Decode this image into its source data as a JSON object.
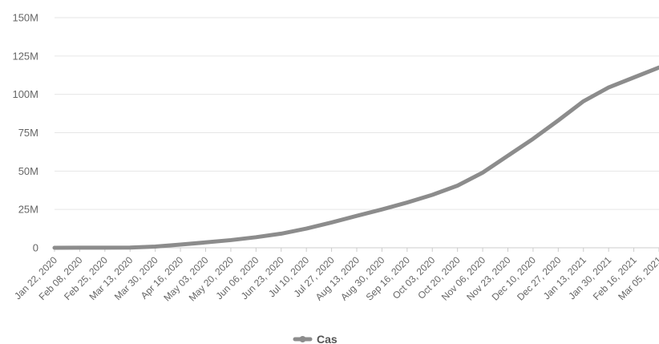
{
  "chart_data": {
    "type": "line",
    "series": [
      {
        "name": "Cas",
        "color": "#8c8c8c",
        "x": [
          "Jan 22, 2020",
          "Feb 08, 2020",
          "Feb 25, 2020",
          "Mar 13, 2020",
          "Mar 30, 2020",
          "Apr 16, 2020",
          "May 03, 2020",
          "May 20, 2020",
          "Jun 06, 2020",
          "Jun 23, 2020",
          "Jul 10, 2020",
          "Jul 27, 2020",
          "Aug 13, 2020",
          "Aug 30, 2020",
          "Sep 16, 2020",
          "Oct 03, 2020",
          "Oct 20, 2020",
          "Nov 06, 2020",
          "Nov 23, 2020",
          "Dec 10, 2020",
          "Dec 27, 2020",
          "Jan 13, 2021",
          "Jan 30, 2021",
          "Feb 16, 2021",
          "Mar 05, 2021"
        ],
        "values": [
          0.0006,
          0.04,
          0.08,
          0.15,
          0.8,
          2.1,
          3.5,
          5.0,
          6.9,
          9.2,
          12.5,
          16.5,
          20.8,
          25.0,
          29.5,
          34.5,
          40.5,
          49.0,
          60.0,
          71.0,
          83.0,
          95.5,
          104.5,
          111.0,
          117.5
        ]
      }
    ],
    "y_tick_labels": [
      "0",
      "25M",
      "50M",
      "75M",
      "100M",
      "125M",
      "150M"
    ],
    "ylim": [
      0,
      150
    ],
    "y_unit": "M",
    "grid": true,
    "legend": {
      "position": "bottom",
      "entries": [
        "Cas"
      ]
    }
  }
}
